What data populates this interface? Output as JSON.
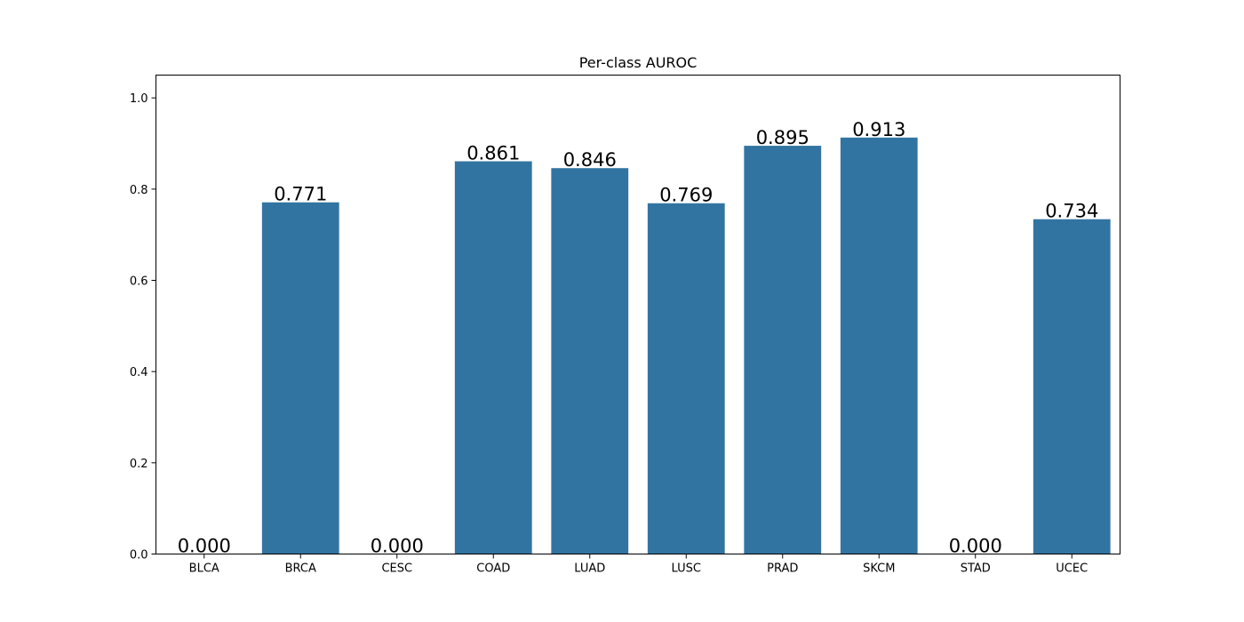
{
  "chart_data": {
    "type": "bar",
    "title": "Per-class AUROC",
    "xlabel": "",
    "ylabel": "",
    "categories": [
      "BLCA",
      "BRCA",
      "CESC",
      "COAD",
      "LUAD",
      "LUSC",
      "PRAD",
      "SKCM",
      "STAD",
      "UCEC"
    ],
    "values": [
      0.0,
      0.771,
      0.0,
      0.861,
      0.846,
      0.769,
      0.895,
      0.913,
      0.0,
      0.734
    ],
    "value_labels": [
      "0.000",
      "0.771",
      "0.000",
      "0.861",
      "0.846",
      "0.769",
      "0.895",
      "0.913",
      "0.000",
      "0.734"
    ],
    "ylim": [
      0,
      1.05
    ],
    "yticks": [
      0.0,
      0.2,
      0.4,
      0.6,
      0.8,
      1.0
    ],
    "ytick_labels": [
      "0.0",
      "0.2",
      "0.4",
      "0.6",
      "0.8",
      "1.0"
    ],
    "grid": false,
    "legend": "none",
    "bar_color": "#3274a1"
  }
}
